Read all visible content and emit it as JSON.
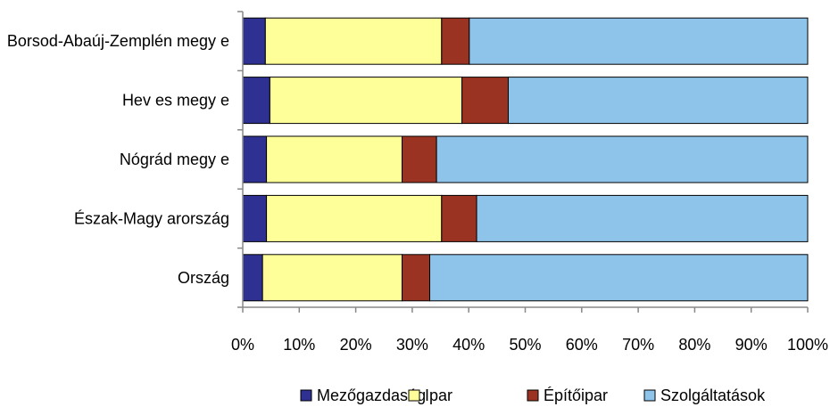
{
  "chart_data": {
    "type": "bar",
    "orientation": "horizontal",
    "stacked": "percent",
    "title": "",
    "xlabel": "",
    "ylabel": "",
    "xlim": [
      0,
      100
    ],
    "x_ticks": [
      "0%",
      "10%",
      "20%",
      "30%",
      "40%",
      "50%",
      "60%",
      "70%",
      "80%",
      "90%",
      "100%"
    ],
    "categories": [
      "Borsod-Abaúj-Zemplén megye",
      "Heves megye",
      "Nógrád megye",
      "Észak-Magyarország",
      "Ország"
    ],
    "category_labels": [
      "Borsod-Abaúj-Zemplén megy e",
      "Hev es megy e",
      "Nógrád megy e",
      "Észak-Magy arország",
      "Ország"
    ],
    "series": [
      {
        "name": "Mezőgazdaság",
        "color": "#2e3192",
        "values": [
          4.0,
          4.8,
          4.2,
          4.2,
          3.5
        ]
      },
      {
        "name": "Ipar",
        "color": "#ffff99",
        "values": [
          31.2,
          34.0,
          24.0,
          31.0,
          24.7
        ]
      },
      {
        "name": "Építőipar",
        "color": "#9b3322",
        "values": [
          4.9,
          8.2,
          6.1,
          6.2,
          4.9
        ]
      },
      {
        "name": "Szolgáltatások",
        "color": "#8ec3ea",
        "values": [
          59.9,
          53.0,
          65.7,
          58.6,
          66.9
        ]
      }
    ],
    "grid": false,
    "legend_position": "bottom"
  }
}
